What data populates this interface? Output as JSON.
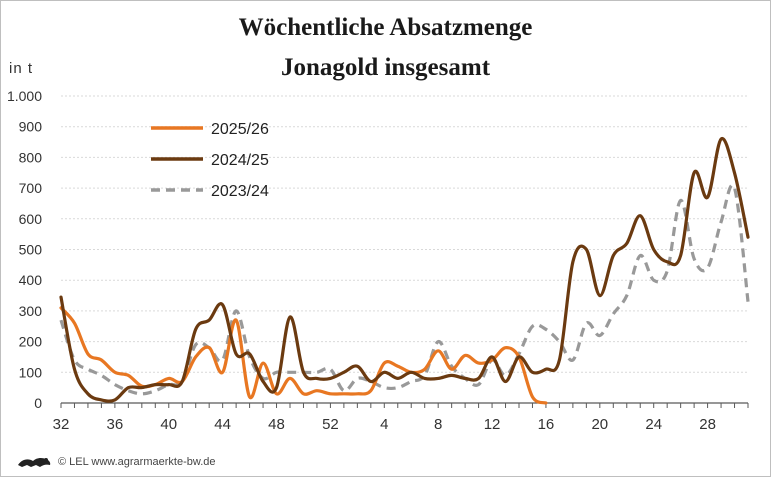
{
  "chart_data": {
    "type": "line",
    "title": "Wöchentliche Absatzmenge",
    "subtitle": "Jonagold insgesamt",
    "ylabel": "in  t",
    "ylim": [
      0,
      1000
    ],
    "yticks": [
      0,
      100,
      200,
      300,
      400,
      500,
      600,
      700,
      800,
      900,
      1000
    ],
    "ytick_labels": [
      "0",
      "100",
      "200",
      "300",
      "400",
      "500",
      "600",
      "700",
      "800",
      "900",
      "1.000"
    ],
    "xtick_labels": [
      "32",
      "36",
      "40",
      "44",
      "48",
      "52",
      "4",
      "8",
      "12",
      "16",
      "20",
      "24",
      "28"
    ],
    "grid": true,
    "legend": "top-left",
    "series": [
      {
        "name": "2025/26",
        "color": "#e87722",
        "style": "solid",
        "values": [
          310,
          260,
          160,
          140,
          100,
          90,
          55,
          60,
          80,
          70,
          150,
          180,
          100,
          270,
          20,
          130,
          30,
          80,
          30,
          40,
          30,
          30,
          30,
          40,
          130,
          120,
          100,
          110,
          170,
          110,
          155,
          130,
          140,
          180,
          150,
          20,
          0
        ]
      },
      {
        "name": "2024/25",
        "color": "#6b3a10",
        "style": "solid",
        "values": [
          345,
          110,
          30,
          10,
          10,
          50,
          50,
          60,
          60,
          70,
          240,
          270,
          320,
          160,
          160,
          70,
          50,
          280,
          100,
          80,
          80,
          100,
          120,
          70,
          100,
          80,
          100,
          80,
          80,
          90,
          80,
          80,
          150,
          70,
          150,
          100,
          110,
          140,
          460,
          500,
          350,
          480,
          520,
          610,
          500,
          460,
          480,
          750,
          670,
          860,
          750,
          540
        ]
      },
      {
        "name": "2023/24",
        "color": "#999999",
        "style": "dashed",
        "values": [
          270,
          140,
          110,
          90,
          60,
          40,
          30,
          40,
          60,
          70,
          190,
          180,
          140,
          300,
          150,
          80,
          100,
          100,
          100,
          100,
          110,
          40,
          80,
          70,
          50,
          50,
          70,
          90,
          200,
          120,
          80,
          60,
          140,
          90,
          160,
          250,
          240,
          200,
          140,
          260,
          220,
          290,
          350,
          480,
          400,
          430,
          660,
          470,
          440,
          590,
          700,
          330
        ]
      }
    ]
  },
  "footer": {
    "credit": "© LEL www.agrarmaerkte-bw.de",
    "logo_icon": "lion-logo-icon"
  }
}
